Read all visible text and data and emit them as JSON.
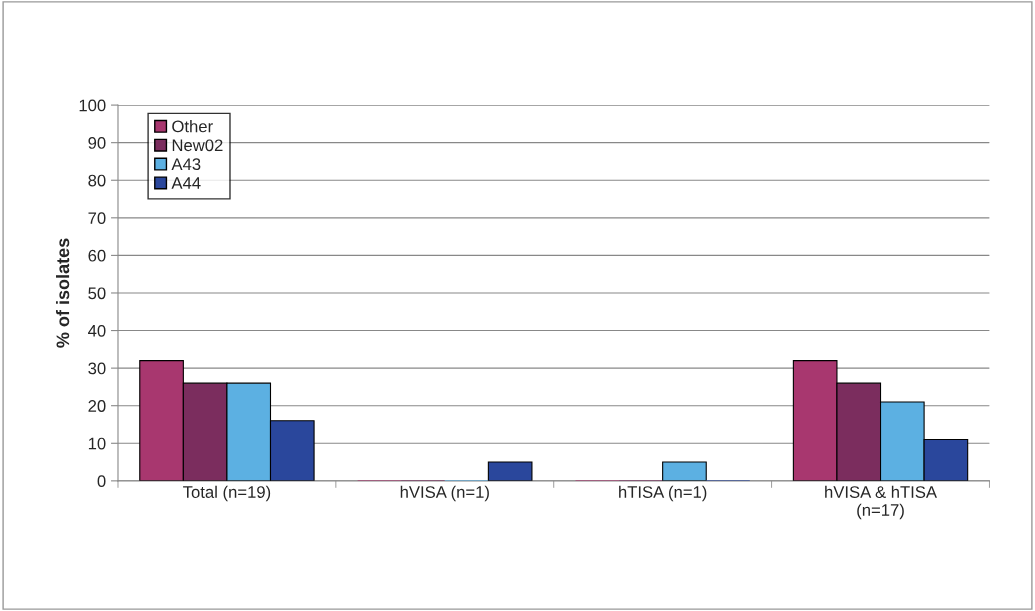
{
  "chart_data": {
    "type": "bar",
    "ylabel": "% of isolates",
    "categories": [
      "Total (n=19)",
      "hVISA (n=1)",
      "hTISA (n=1)",
      "hVISA & hTISA\n(n=17)"
    ],
    "series": [
      {
        "name": "Other",
        "color": "#a8376f",
        "values": [
          32,
          0,
          0,
          32
        ]
      },
      {
        "name": "New02",
        "color": "#7b2d5e",
        "values": [
          26,
          0,
          0,
          26
        ]
      },
      {
        "name": "A43",
        "color": "#5cb0e2",
        "values": [
          26,
          0,
          5,
          21
        ]
      },
      {
        "name": "A44",
        "color": "#2a479c",
        "values": [
          16,
          5,
          0,
          11
        ]
      }
    ],
    "ylim": [
      0,
      100
    ],
    "yticks": [
      0,
      10,
      20,
      30,
      40,
      50,
      60,
      70,
      80,
      90,
      100
    ],
    "grid": "y",
    "legend": "top left"
  }
}
